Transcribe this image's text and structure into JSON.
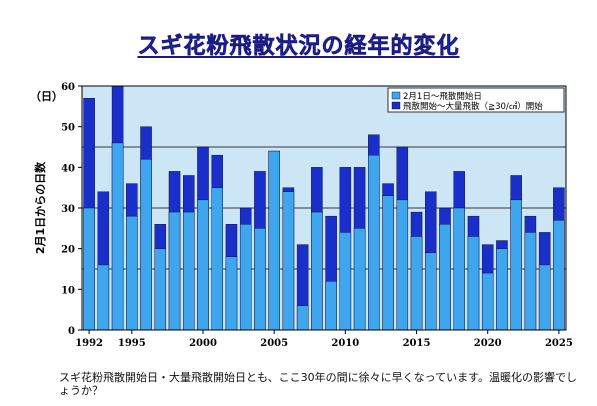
{
  "title": "スギ花粉飛散状況の経年的変化",
  "note": "スギ花粉飛散開始日・大量飛散開始日とも、ここ30年の間に徐々に早くなっています。温暖化の影響でしょうか？",
  "chart_data": {
    "type": "bar",
    "title": "スギ花粉飛散状況の経年的変化",
    "ylabel": "2月1日からの日数",
    "yunit": "（日）",
    "ylim": [
      0,
      60
    ],
    "yticks": [
      0,
      10,
      20,
      30,
      40,
      50,
      60
    ],
    "xticks": [
      1992,
      1995,
      2000,
      2005,
      2010,
      2015,
      2020,
      2025
    ],
    "grid": true,
    "legend_position": "top-right",
    "colors": {
      "plot_bg": "#cde6f5",
      "start": "#3fa6ee",
      "heavy": "#1a2fc9",
      "bar_edge": "#000033",
      "title": "#1f3fd0"
    },
    "categories": [
      1992,
      1993,
      1994,
      1995,
      1996,
      1997,
      1998,
      1999,
      2000,
      2001,
      2002,
      2003,
      2004,
      2005,
      2006,
      2007,
      2008,
      2009,
      2010,
      2011,
      2012,
      2013,
      2014,
      2015,
      2016,
      2017,
      2018,
      2019,
      2020,
      2021,
      2022,
      2023,
      2024,
      2025
    ],
    "series": [
      {
        "name": "2月1日～飛散開始日",
        "values": [
          30,
          16,
          46,
          28,
          42,
          20,
          29,
          29,
          32,
          35,
          18,
          26,
          25,
          44,
          34,
          6,
          29,
          12,
          24,
          25,
          43,
          33,
          32,
          23,
          19,
          26,
          30,
          23,
          14,
          20,
          32,
          24,
          16,
          27
        ]
      },
      {
        "name": "飛散開始～大量飛散（≧30/㎠）開始",
        "values": [
          57,
          34,
          60,
          36,
          50,
          26,
          39,
          38,
          45,
          43,
          26,
          30,
          39,
          44,
          35,
          21,
          40,
          28,
          40,
          40,
          48,
          36,
          45,
          29,
          34,
          30,
          39,
          28,
          21,
          22,
          38,
          28,
          24,
          35
        ]
      }
    ]
  }
}
